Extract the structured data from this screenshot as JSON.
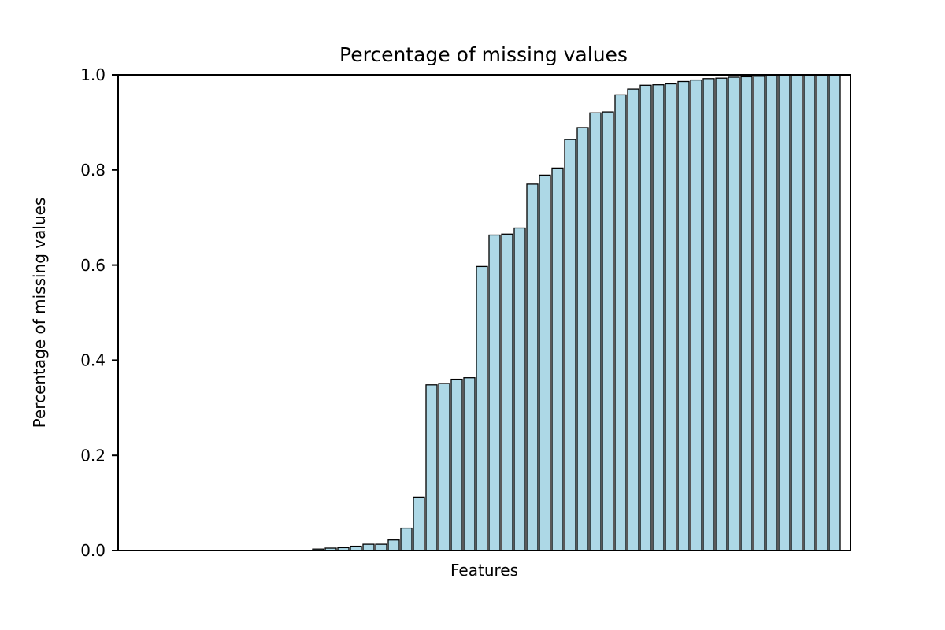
{
  "chart_data": {
    "type": "bar",
    "title": "Percentage of missing values",
    "xlabel": "Features",
    "ylabel": "Percentage of missing values",
    "ylim": [
      0.0,
      1.0
    ],
    "yticks": [
      0.0,
      0.2,
      0.4,
      0.6,
      0.8,
      1.0
    ],
    "ytick_format_decimals": 1,
    "xtick_labels": [],
    "grid": false,
    "legend": null,
    "bar_fill_color": "#ADD8E6",
    "bar_edge_color": "#000000",
    "background_color": "#ffffff",
    "values": [
      0,
      0,
      0,
      0,
      0,
      0,
      0,
      0,
      0,
      0,
      0,
      0,
      0,
      0,
      0,
      0.003,
      0.005,
      0.006,
      0.009,
      0.013,
      0.013,
      0.022,
      0.047,
      0.112,
      0.348,
      0.351,
      0.36,
      0.363,
      0.597,
      0.663,
      0.665,
      0.678,
      0.77,
      0.789,
      0.804,
      0.864,
      0.889,
      0.92,
      0.922,
      0.958,
      0.97,
      0.978,
      0.979,
      0.981,
      0.986,
      0.989,
      0.992,
      0.993,
      0.995,
      0.996,
      0.997,
      0.998,
      0.999,
      0.999,
      1.0,
      1.0,
      1.0
    ]
  }
}
